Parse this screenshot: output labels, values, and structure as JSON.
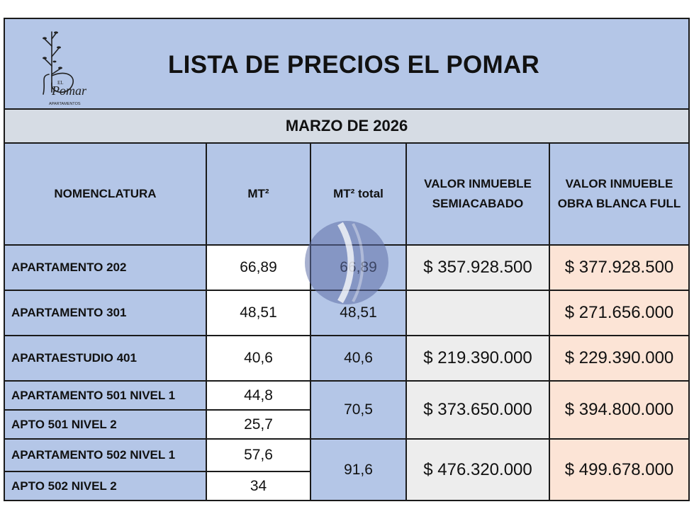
{
  "header": {
    "title": "LISTA DE PRECIOS EL POMAR",
    "logo_text": {
      "el": "EL",
      "brand": "Pomar",
      "sub": "APARTAMENTOS"
    }
  },
  "date_label": "MARZO DE 2026",
  "columns": {
    "nomenclatura": "NOMENCLATURA",
    "mt2": "MT²",
    "mt2_total": "MT²  total",
    "semi_line1": "VALOR INMUEBLE",
    "semi_line2": "SEMIACABADO",
    "full_line1": "VALOR INMUEBLE",
    "full_line2": "OBRA BLANCA FULL"
  },
  "rows": [
    {
      "name": "APARTAMENTO 202",
      "mt2": "66,89",
      "total": "66,89",
      "semi": "$ 357.928.500",
      "full": "$ 377.928.500"
    },
    {
      "name": "APARTAMENTO 301",
      "mt2": "48,51",
      "total": "48,51",
      "semi": "",
      "full": "$ 271.656.000"
    },
    {
      "name": "APARTAESTUDIO 401",
      "mt2": "40,6",
      "total": "40,6",
      "semi": "$ 219.390.000",
      "full": "$ 229.390.000"
    },
    {
      "name": "APARTAMENTO 501 NIVEL 1",
      "mt2": "44,8",
      "total": "70,5",
      "semi": "$ 373.650.000",
      "full": "$ 394.800.000"
    },
    {
      "name": "APTO 501  NIVEL 2",
      "mt2": "25,7"
    },
    {
      "name": "APARTAMENTO 502 NIVEL 1",
      "mt2": "57,6",
      "total": "91,6",
      "semi": "$ 476.320.000",
      "full": "$ 499.678.000"
    },
    {
      "name": "APTO 502  NIVEL 2",
      "mt2": "34"
    }
  ],
  "colors": {
    "blue_header": "#b4c6e7",
    "gray_date": "#d6dce4",
    "gray_semi": "#ededed",
    "peach_full": "#fce4d6"
  }
}
